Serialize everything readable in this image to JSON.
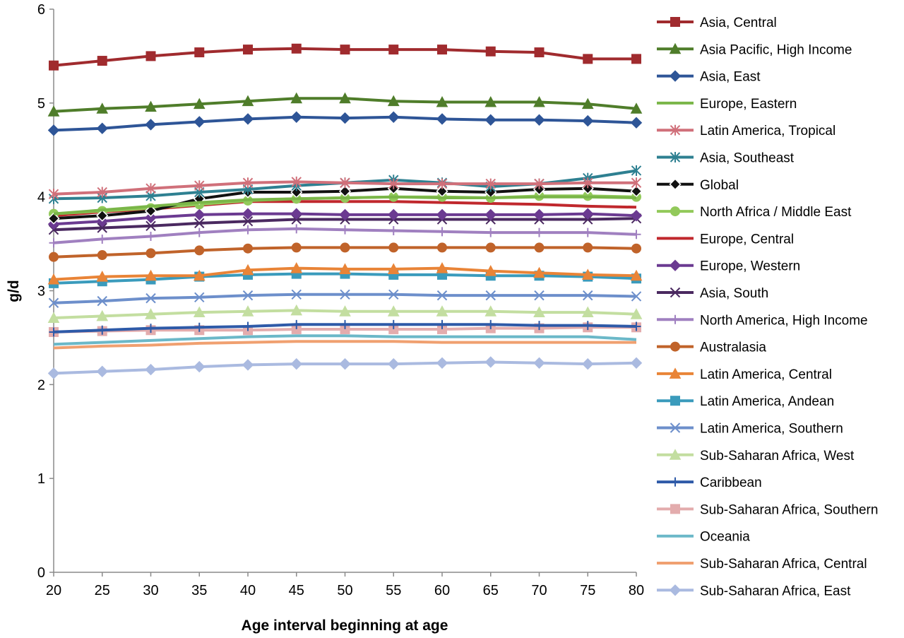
{
  "chart_data": {
    "type": "line",
    "title": "",
    "xlabel": "Age interval beginning at age",
    "ylabel": "g/d",
    "x": [
      20,
      25,
      30,
      35,
      40,
      45,
      50,
      55,
      60,
      65,
      70,
      75,
      80
    ],
    "xlim": [
      20,
      80
    ],
    "ylim": [
      0,
      6
    ],
    "yticks": [
      0,
      1,
      2,
      3,
      4,
      5,
      6
    ],
    "grid": false,
    "legend_position": "right",
    "series": [
      {
        "name": "Asia, Central",
        "color": "#A02B2E",
        "marker": "square",
        "values": [
          5.4,
          5.45,
          5.5,
          5.54,
          5.57,
          5.58,
          5.57,
          5.57,
          5.57,
          5.55,
          5.54,
          5.47,
          5.47
        ]
      },
      {
        "name": "Asia Pacific, High Income",
        "color": "#4F7D2A",
        "marker": "triangle",
        "values": [
          4.91,
          4.94,
          4.96,
          4.99,
          5.02,
          5.05,
          5.05,
          5.02,
          5.01,
          5.01,
          5.01,
          4.99,
          4.94
        ]
      },
      {
        "name": "Asia, East",
        "color": "#2E5597",
        "marker": "diamond",
        "values": [
          4.71,
          4.73,
          4.77,
          4.8,
          4.83,
          4.85,
          4.84,
          4.85,
          4.83,
          4.82,
          4.82,
          4.81,
          4.79
        ]
      },
      {
        "name": "Europe, Eastern",
        "color": "#7AB648",
        "marker": "none",
        "values": [
          3.82,
          3.86,
          3.9,
          3.94,
          3.97,
          3.98,
          3.99,
          4.0,
          3.99,
          3.99,
          4.0,
          4.0,
          3.99
        ]
      },
      {
        "name": "Latin America, Tropical",
        "color": "#D0707A",
        "marker": "asterisk",
        "values": [
          4.03,
          4.05,
          4.09,
          4.12,
          4.15,
          4.16,
          4.15,
          4.14,
          4.14,
          4.14,
          4.14,
          4.15,
          4.15
        ]
      },
      {
        "name": "Asia, Southeast",
        "color": "#2E8091",
        "marker": "asterisk",
        "values": [
          3.98,
          3.99,
          4.01,
          4.05,
          4.08,
          4.12,
          4.15,
          4.18,
          4.15,
          4.11,
          4.14,
          4.2,
          4.28
        ]
      },
      {
        "name": "Global",
        "color": "#111111",
        "marker": "diamond-hollow",
        "values": [
          3.77,
          3.8,
          3.85,
          3.98,
          4.05,
          4.05,
          4.06,
          4.09,
          4.06,
          4.05,
          4.08,
          4.09,
          4.06
        ]
      },
      {
        "name": "North Africa / Middle East",
        "color": "#92C95A",
        "marker": "circle",
        "values": [
          3.82,
          3.85,
          3.88,
          3.92,
          3.96,
          3.98,
          3.99,
          4.0,
          4.0,
          3.99,
          4.01,
          4.01,
          4.0
        ]
      },
      {
        "name": "Europe, Central",
        "color": "#C0282D",
        "marker": "none",
        "values": [
          3.8,
          3.84,
          3.87,
          3.91,
          3.95,
          3.95,
          3.95,
          3.95,
          3.94,
          3.93,
          3.92,
          3.9,
          3.89
        ]
      },
      {
        "name": "Europe, Western",
        "color": "#6B3A91",
        "marker": "diamond",
        "values": [
          3.71,
          3.74,
          3.78,
          3.81,
          3.82,
          3.82,
          3.81,
          3.81,
          3.81,
          3.81,
          3.81,
          3.82,
          3.8
        ]
      },
      {
        "name": "Asia, South",
        "color": "#4A2960",
        "marker": "x",
        "values": [
          3.65,
          3.67,
          3.69,
          3.72,
          3.74,
          3.76,
          3.76,
          3.76,
          3.76,
          3.76,
          3.76,
          3.76,
          3.77
        ]
      },
      {
        "name": "North America, High Income",
        "color": "#A080C0",
        "marker": "plus",
        "values": [
          3.51,
          3.55,
          3.58,
          3.62,
          3.65,
          3.66,
          3.65,
          3.64,
          3.63,
          3.62,
          3.62,
          3.62,
          3.6
        ]
      },
      {
        "name": "Australasia",
        "color": "#C0632A",
        "marker": "circle",
        "values": [
          3.36,
          3.38,
          3.4,
          3.43,
          3.45,
          3.46,
          3.46,
          3.46,
          3.46,
          3.46,
          3.46,
          3.46,
          3.45
        ]
      },
      {
        "name": "Latin America, Central",
        "color": "#E98437",
        "marker": "triangle",
        "values": [
          3.12,
          3.15,
          3.16,
          3.16,
          3.22,
          3.24,
          3.23,
          3.23,
          3.24,
          3.21,
          3.19,
          3.17,
          3.16
        ]
      },
      {
        "name": "Latin America, Andean",
        "color": "#3A9BBC",
        "marker": "square",
        "values": [
          3.08,
          3.1,
          3.12,
          3.15,
          3.17,
          3.18,
          3.18,
          3.17,
          3.17,
          3.16,
          3.16,
          3.15,
          3.13
        ]
      },
      {
        "name": "Latin America, Southern",
        "color": "#6D8FCB",
        "marker": "x",
        "values": [
          2.87,
          2.89,
          2.92,
          2.93,
          2.95,
          2.96,
          2.96,
          2.96,
          2.95,
          2.95,
          2.95,
          2.95,
          2.94
        ]
      },
      {
        "name": "Sub-Saharan Africa, West",
        "color": "#C3DEA0",
        "marker": "triangle",
        "values": [
          2.71,
          2.73,
          2.75,
          2.77,
          2.78,
          2.79,
          2.78,
          2.78,
          2.78,
          2.78,
          2.77,
          2.77,
          2.75
        ]
      },
      {
        "name": "Caribbean",
        "color": "#2E5AA8",
        "marker": "plus",
        "values": [
          2.56,
          2.58,
          2.6,
          2.61,
          2.62,
          2.64,
          2.64,
          2.64,
          2.64,
          2.64,
          2.63,
          2.63,
          2.62
        ]
      },
      {
        "name": "Sub-Saharan Africa, Southern",
        "color": "#E3ACAD",
        "marker": "square",
        "values": [
          2.56,
          2.57,
          2.58,
          2.58,
          2.58,
          2.59,
          2.59,
          2.59,
          2.59,
          2.6,
          2.6,
          2.61,
          2.61
        ]
      },
      {
        "name": "Oceania",
        "color": "#6BB8C8",
        "marker": "none",
        "values": [
          2.43,
          2.45,
          2.47,
          2.49,
          2.51,
          2.52,
          2.52,
          2.51,
          2.51,
          2.51,
          2.51,
          2.51,
          2.48
        ]
      },
      {
        "name": "Sub-Saharan Africa, Central",
        "color": "#F0A070",
        "marker": "none",
        "values": [
          2.39,
          2.41,
          2.42,
          2.44,
          2.45,
          2.46,
          2.46,
          2.46,
          2.45,
          2.45,
          2.45,
          2.45,
          2.45
        ]
      },
      {
        "name": "Sub-Saharan Africa, East",
        "color": "#AABAE0",
        "marker": "diamond",
        "values": [
          2.12,
          2.14,
          2.16,
          2.19,
          2.21,
          2.22,
          2.22,
          2.22,
          2.23,
          2.24,
          2.23,
          2.22,
          2.23
        ]
      }
    ]
  }
}
